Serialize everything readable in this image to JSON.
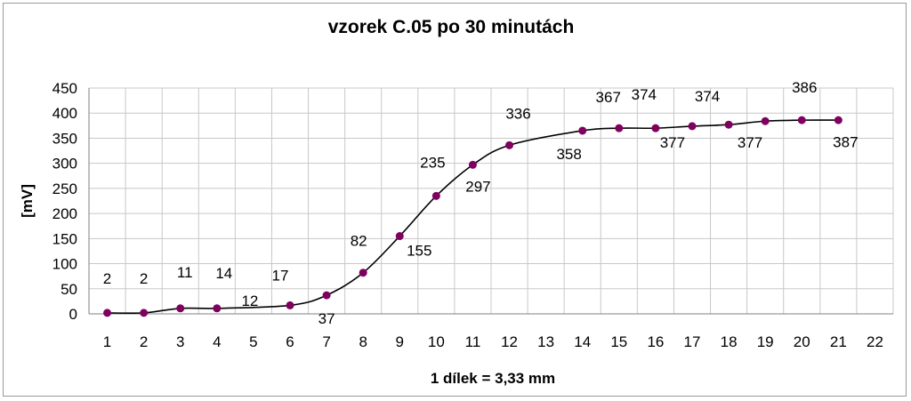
{
  "chart_data": {
    "type": "line",
    "title": "vzorek C.05 po 30 minutách",
    "xlabel": "1 dílek = 3,33 mm",
    "ylabel": "[mV]",
    "x": [
      1,
      2,
      3,
      4,
      5,
      6,
      7,
      8,
      9,
      10,
      11,
      12,
      13,
      14,
      15,
      16,
      17,
      18,
      19,
      20,
      21
    ],
    "x_ticks": [
      "1",
      "2",
      "3",
      "4",
      "5",
      "6",
      "7",
      "8",
      "9",
      "10",
      "11",
      "12",
      "13",
      "14",
      "15",
      "16",
      "17",
      "18",
      "19",
      "20",
      "21",
      "22"
    ],
    "y_ticks": [
      "0",
      "50",
      "100",
      "150",
      "200",
      "250",
      "300",
      "350",
      "400",
      "450"
    ],
    "xlim": [
      1,
      22
    ],
    "ylim": [
      0,
      450
    ],
    "grid": true,
    "series": [
      {
        "values": [
          2,
          2,
          11,
          14,
          12,
          17,
          37,
          82,
          155,
          235,
          297,
          336,
          358,
          367,
          374,
          377,
          374,
          377,
          386,
          386,
          387
        ],
        "marker_x": [
          1,
          2,
          3,
          4,
          6,
          7,
          8,
          9,
          10,
          11,
          12,
          14,
          15,
          16,
          17,
          18,
          19,
          20,
          21
        ],
        "marker_values": [
          2,
          2,
          11,
          11,
          17,
          37,
          82,
          155,
          235,
          297,
          336,
          365,
          370,
          370,
          374,
          377,
          384,
          386,
          386
        ],
        "color": "#800060",
        "line_color": "#000000"
      }
    ],
    "data_labels": [
      {
        "text": "2",
        "x": 1,
        "y": 2
      },
      {
        "text": "2",
        "x": 2,
        "y": 2
      },
      {
        "text": "11",
        "x": 3,
        "y": 11
      },
      {
        "text": "14",
        "x": 4,
        "y": 14
      },
      {
        "text": "12",
        "x": 5,
        "y": 12
      },
      {
        "text": "17",
        "x": 6,
        "y": 17
      },
      {
        "text": "37",
        "x": 7,
        "y": 37
      },
      {
        "text": "82",
        "x": 8,
        "y": 82
      },
      {
        "text": "155",
        "x": 9,
        "y": 155
      },
      {
        "text": "235",
        "x": 10,
        "y": 235
      },
      {
        "text": "297",
        "x": 11,
        "y": 297
      },
      {
        "text": "336",
        "x": 12,
        "y": 336
      },
      {
        "text": "358",
        "x": 13,
        "y": 358
      },
      {
        "text": "367",
        "x": 14,
        "y": 367
      },
      {
        "text": "374",
        "x": 15,
        "y": 374
      },
      {
        "text": "377",
        "x": 16,
        "y": 377
      },
      {
        "text": "374",
        "x": 17,
        "y": 374
      },
      {
        "text": "377",
        "x": 18,
        "y": 377
      },
      {
        "text": "386",
        "x": 20,
        "y": 386
      },
      {
        "text": "387",
        "x": 21,
        "y": 387
      }
    ]
  }
}
